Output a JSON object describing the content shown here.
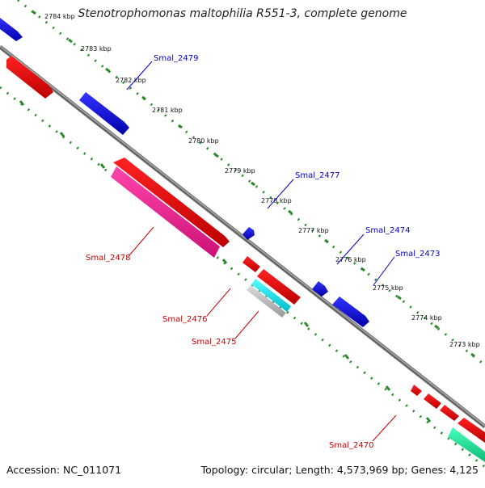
{
  "title": "Stenotrophomonas maltophilia R551-3, complete genome",
  "accession": "Accession: NC_011071",
  "summary": "Topology: circular; Length: 4,573,969 bp; Genes: 4,125",
  "colors": {
    "backbone": "#777777",
    "ticks": "#2a8a2a",
    "forward_gene": "#0000ee",
    "reverse_gene": "#ee0000",
    "pink_gene": "#ee2288",
    "cyan_gene": "#00e5ee",
    "gray_gene": "#bbbbbb",
    "teal_gene": "#22dd99"
  },
  "scale_labels": [
    {
      "text": "2784 kbp"
    },
    {
      "text": "2783 kbp"
    },
    {
      "text": "2782 kbp"
    },
    {
      "text": "2781 kbp"
    },
    {
      "text": "2780 kbp"
    },
    {
      "text": "2779 kbp"
    },
    {
      "text": "2778 kbp"
    },
    {
      "text": "2777 kbp"
    },
    {
      "text": "2776 kbp"
    },
    {
      "text": "2775 kbp"
    },
    {
      "text": "2774 kbp"
    },
    {
      "text": "2773 kbp"
    }
  ],
  "gene_labels": [
    {
      "text": "Smal_2479",
      "strand": "forward"
    },
    {
      "text": "Smal_2477",
      "strand": "forward"
    },
    {
      "text": "Smal_2474",
      "strand": "forward"
    },
    {
      "text": "Smal_2473",
      "strand": "forward"
    },
    {
      "text": "Smal_2478",
      "strand": "reverse"
    },
    {
      "text": "Smal_2476",
      "strand": "reverse"
    },
    {
      "text": "Smal_2475",
      "strand": "reverse"
    },
    {
      "text": "Smal_2470",
      "strand": "reverse"
    }
  ]
}
